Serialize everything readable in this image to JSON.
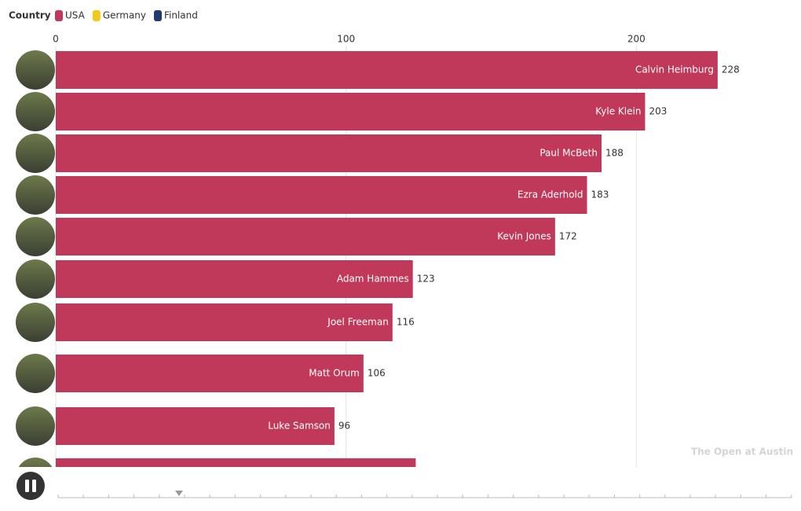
{
  "chart_data": {
    "type": "bar",
    "orientation": "horizontal",
    "title": "The Open at Austin",
    "legend_title": "Country",
    "categories": [
      "Calvin Heimburg",
      "Kyle Klein",
      "Paul McBeth",
      "Ezra Aderhold",
      "Kevin Jones",
      "Adam Hammes",
      "Joel Freeman",
      "Matt Orum",
      "Luke Samson",
      null
    ],
    "series": [
      {
        "name": "USA",
        "color": "#c0395a",
        "values": [
          228,
          203,
          188,
          183,
          172,
          123,
          116,
          106,
          96,
          124
        ]
      },
      {
        "name": "Germany",
        "color": "#f2c919",
        "values": [
          null,
          null,
          null,
          null,
          null,
          null,
          null,
          null,
          null,
          null
        ]
      },
      {
        "name": "Finland",
        "color": "#1f3a6e",
        "values": [
          null,
          null,
          null,
          null,
          null,
          null,
          null,
          null,
          null,
          null
        ]
      }
    ],
    "xlim": [
      0,
      254
    ],
    "xticks": [
      0,
      100,
      200
    ],
    "grid": true
  }
}
